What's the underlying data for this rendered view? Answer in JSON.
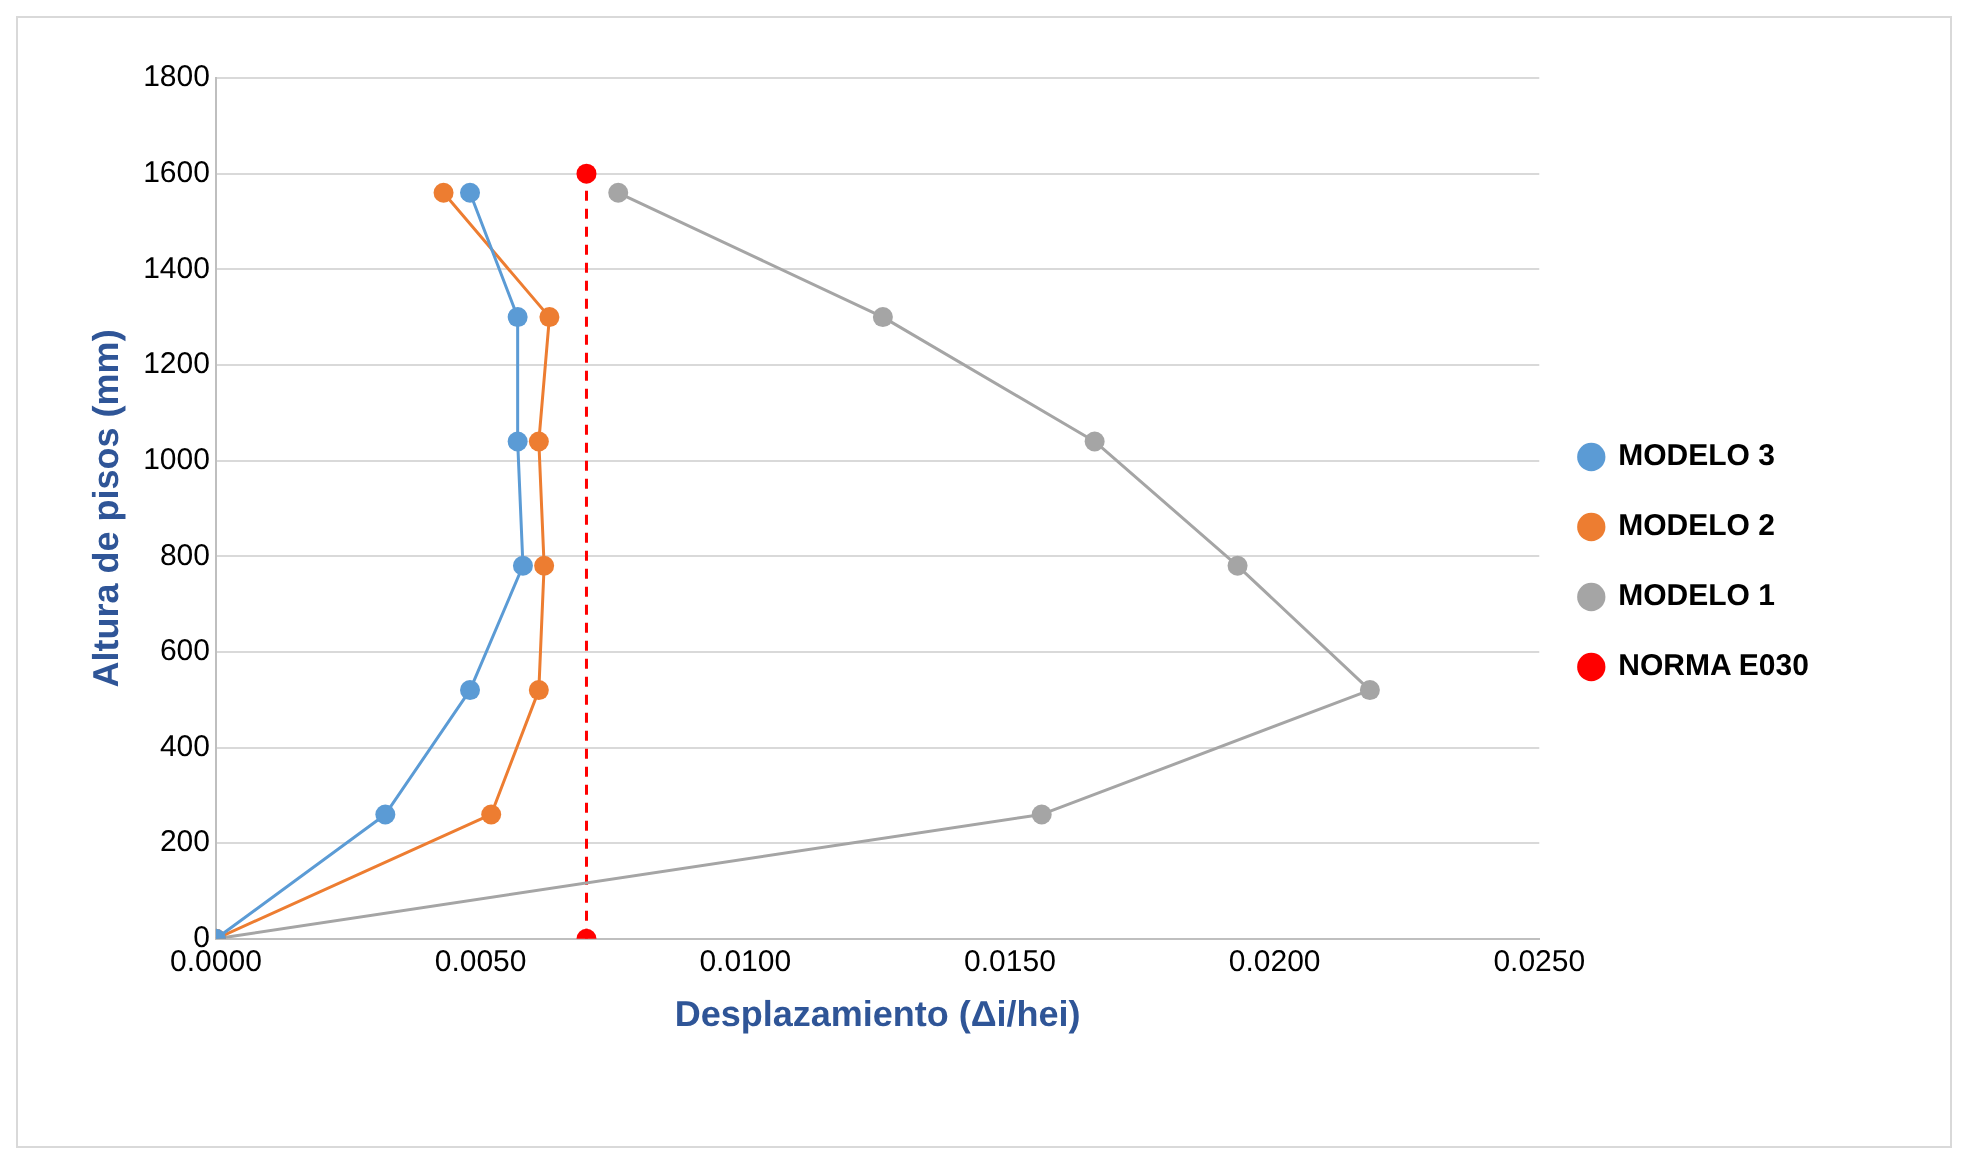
{
  "chart_data": {
    "type": "line",
    "xlabel": "Desplazamiento (Δi/hei)",
    "ylabel": "Altura de pisos (mm)",
    "xlim": [
      0,
      0.025
    ],
    "xticks": [
      {
        "value": 0,
        "label": "0.0000"
      },
      {
        "value": 0.005,
        "label": "0.0050"
      },
      {
        "value": 0.01,
        "label": "0.0100"
      },
      {
        "value": 0.015,
        "label": "0.0150"
      },
      {
        "value": 0.02,
        "label": "0.0200"
      },
      {
        "value": 0.025,
        "label": "0.0250"
      }
    ],
    "ylim": [
      0,
      1800
    ],
    "yticks": [
      0,
      200,
      400,
      600,
      800,
      1000,
      1200,
      1400,
      1600,
      1800
    ],
    "grid": "y",
    "legend": "right",
    "marker": "circle",
    "series": [
      {
        "name": "MODELO 3",
        "color": "#5b9bd5",
        "x": [
          0,
          0.0032,
          0.0048,
          0.0058,
          0.0057,
          0.0057,
          0.0048
        ],
        "values": [
          0,
          260,
          520,
          780,
          1040,
          1300,
          1560
        ]
      },
      {
        "name": "MODELO 2",
        "color": "#ed7d31",
        "x": [
          0,
          0.0052,
          0.0061,
          0.0062,
          0.0061,
          0.0063,
          0.0043
        ],
        "values": [
          0,
          260,
          520,
          780,
          1040,
          1300,
          1560
        ]
      },
      {
        "name": "MODELO 1",
        "color": "#a5a5a5",
        "x": [
          0,
          0.0156,
          0.0218,
          0.0193,
          0.0166,
          0.0126,
          0.0076
        ],
        "values": [
          0,
          260,
          520,
          780,
          1040,
          1300,
          1560
        ]
      },
      {
        "name": "NORMA E030",
        "color": "#ff0000",
        "line_style": "dashed",
        "x": [
          0.007,
          0.007
        ],
        "values": [
          0,
          1600
        ]
      }
    ]
  }
}
